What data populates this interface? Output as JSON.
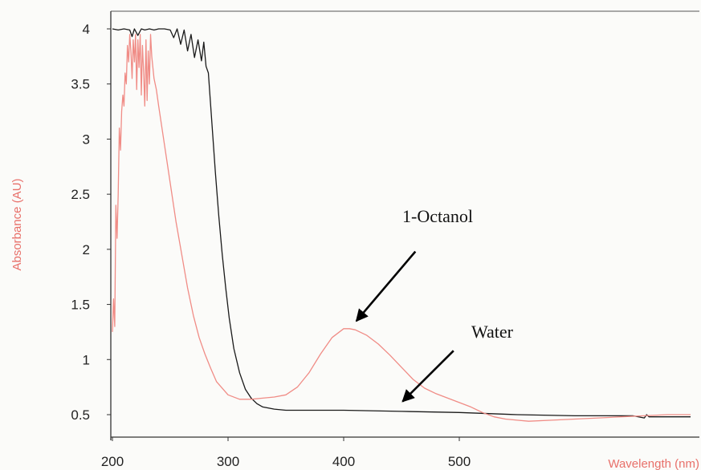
{
  "chart_data": {
    "type": "line",
    "xlabel": "Wavelength (nm)",
    "ylabel": "Absorbance (AU)",
    "axis_label_color": "#e8706a",
    "xlim": [
      200,
      700
    ],
    "ylim": [
      0.3,
      4.15
    ],
    "x_ticks": [
      "200",
      "300",
      "400",
      "500"
    ],
    "x_tick_values": [
      200,
      300,
      400,
      500
    ],
    "y_ticks": [
      "0.5",
      "1",
      "1.5",
      "2",
      "2.5",
      "3",
      "3.5",
      "4"
    ],
    "y_tick_values": [
      0.5,
      1,
      1.5,
      2,
      2.5,
      3,
      3.5,
      4
    ],
    "grid": false,
    "series": [
      {
        "color": "#1a1a1a",
        "x": [
          200,
          205,
          210,
          215,
          217,
          219,
          222,
          225,
          228,
          232,
          236,
          240,
          245,
          250,
          253,
          256,
          259,
          262,
          265,
          268,
          271,
          274,
          277,
          279,
          281,
          283,
          285,
          287,
          289,
          292,
          295,
          298,
          301,
          305,
          310,
          315,
          320,
          325,
          330,
          340,
          350,
          360,
          380,
          400,
          450,
          500,
          550,
          600,
          650,
          660,
          662,
          664,
          680,
          700
        ],
        "y": [
          4.0,
          3.99,
          4.0,
          3.99,
          3.93,
          4.0,
          3.94,
          4.0,
          3.99,
          4.0,
          3.99,
          4.0,
          4.0,
          3.99,
          3.92,
          4.0,
          3.86,
          3.99,
          3.8,
          3.95,
          3.74,
          3.9,
          3.71,
          3.88,
          3.66,
          3.6,
          3.3,
          3.0,
          2.7,
          2.3,
          1.95,
          1.65,
          1.38,
          1.1,
          0.88,
          0.73,
          0.65,
          0.6,
          0.57,
          0.55,
          0.54,
          0.54,
          0.54,
          0.54,
          0.53,
          0.52,
          0.5,
          0.49,
          0.49,
          0.47,
          0.5,
          0.48,
          0.48,
          0.48
        ]
      },
      {
        "color": "#f08c86",
        "x": [
          200,
          201,
          202,
          203,
          204,
          205,
          206,
          207,
          208,
          209,
          210,
          211,
          212,
          213,
          214,
          215,
          216,
          217,
          218,
          219,
          220,
          221,
          222,
          223,
          224,
          225,
          226,
          227,
          228,
          229,
          230,
          231,
          232,
          233,
          234,
          236,
          238,
          240,
          245,
          250,
          255,
          260,
          265,
          270,
          275,
          280,
          285,
          290,
          300,
          310,
          320,
          330,
          340,
          350,
          360,
          370,
          380,
          390,
          400,
          405,
          410,
          420,
          430,
          440,
          450,
          460,
          470,
          480,
          490,
          500,
          510,
          520,
          530,
          540,
          550,
          560,
          580,
          600,
          620,
          640,
          660,
          680,
          700
        ],
        "y": [
          1.25,
          1.55,
          1.3,
          2.4,
          2.1,
          2.5,
          3.1,
          2.9,
          3.25,
          3.4,
          3.3,
          3.6,
          3.5,
          3.85,
          3.7,
          3.95,
          3.8,
          3.55,
          3.9,
          3.7,
          3.95,
          3.45,
          3.9,
          3.65,
          3.95,
          3.4,
          3.85,
          3.6,
          3.3,
          3.9,
          3.35,
          3.8,
          3.5,
          3.95,
          3.75,
          3.55,
          3.45,
          3.3,
          2.95,
          2.6,
          2.25,
          1.95,
          1.65,
          1.4,
          1.2,
          1.05,
          0.92,
          0.8,
          0.68,
          0.64,
          0.64,
          0.65,
          0.66,
          0.68,
          0.75,
          0.88,
          1.05,
          1.2,
          1.28,
          1.28,
          1.27,
          1.22,
          1.14,
          1.04,
          0.93,
          0.82,
          0.74,
          0.69,
          0.65,
          0.61,
          0.57,
          0.52,
          0.48,
          0.46,
          0.45,
          0.44,
          0.45,
          0.46,
          0.47,
          0.48,
          0.49,
          0.5,
          0.5
        ]
      }
    ],
    "annotations": [
      {
        "text": "1-Octanol",
        "arrow_from": [
          462,
          1.98
        ],
        "arrow_to": [
          411,
          1.35
        ]
      },
      {
        "text": "Water",
        "arrow_from": [
          495,
          1.08
        ],
        "arrow_to": [
          451,
          0.62
        ]
      }
    ]
  }
}
